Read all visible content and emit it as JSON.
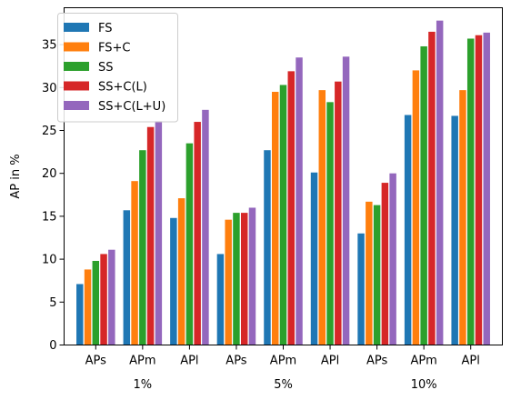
{
  "chart_data": {
    "type": "bar",
    "title": "",
    "xlabel": "",
    "ylabel": "AP in %",
    "ylim": [
      0,
      39.3
    ],
    "yticks": [
      0,
      5,
      10,
      15,
      20,
      25,
      30,
      35
    ],
    "grid": false,
    "legend_position": "top-left",
    "categories": [
      "APs",
      "APm",
      "APl",
      "APs",
      "APm",
      "APl",
      "APs",
      "APm",
      "APl"
    ],
    "groups": [
      {
        "label": "1%",
        "categories": [
          "APs",
          "APm",
          "APl"
        ]
      },
      {
        "label": "5%",
        "categories": [
          "APs",
          "APm",
          "APl"
        ]
      },
      {
        "label": "10%",
        "categories": [
          "APs",
          "APm",
          "APl"
        ]
      }
    ],
    "series": [
      {
        "name": "FS",
        "color": "#1f77b4",
        "values": [
          7.1,
          15.7,
          14.8,
          10.6,
          22.7,
          20.1,
          13.0,
          26.8,
          26.7
        ]
      },
      {
        "name": "FS+C",
        "color": "#ff7f0e",
        "values": [
          8.8,
          19.1,
          17.1,
          14.6,
          29.5,
          29.7,
          16.7,
          32.0,
          29.7
        ]
      },
      {
        "name": "SS",
        "color": "#2ca02c",
        "values": [
          9.8,
          22.7,
          23.5,
          15.4,
          30.3,
          28.3,
          16.3,
          34.8,
          35.7
        ]
      },
      {
        "name": "SS+C(L)",
        "color": "#d62728",
        "values": [
          10.6,
          25.4,
          26.0,
          15.4,
          31.9,
          30.7,
          18.9,
          36.5,
          36.1
        ]
      },
      {
        "name": "SS+C(L+U)",
        "color": "#9467bd",
        "values": [
          11.1,
          26.1,
          27.4,
          16.0,
          33.5,
          33.6,
          20.0,
          37.8,
          36.4
        ]
      }
    ]
  }
}
